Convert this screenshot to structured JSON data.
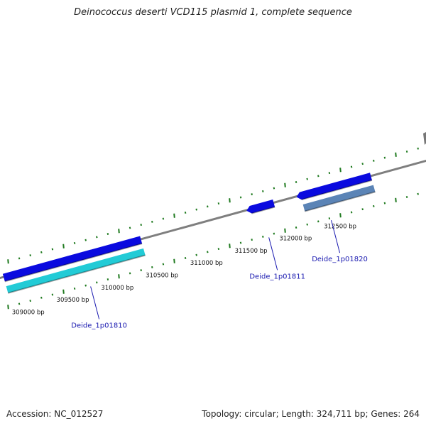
{
  "title": "Deinococcus deserti VCD115 plasmid 1, complete sequence",
  "footer": {
    "accession": "Accession: NC_012527",
    "topology": "Topology: circular; Length: 324,711 bp; Genes: 264"
  },
  "colors": {
    "backbone": "#7f7f7f",
    "tick": "#1f7a1f",
    "gene_blue": "#0a0adf",
    "gene_cyan": "#22cbd6",
    "gene_steel": "#5b84b6",
    "label_blue": "#1a1ab0"
  },
  "scale_labels": [
    {
      "text": "309000 bp",
      "pos": 309000
    },
    {
      "text": "309500 bp",
      "pos": 309500
    },
    {
      "text": "310000 bp",
      "pos": 310000
    },
    {
      "text": "310500 bp",
      "pos": 310500
    },
    {
      "text": "311000 bp",
      "pos": 311000
    },
    {
      "text": "311500 bp",
      "pos": 311500
    },
    {
      "text": "312000 bp",
      "pos": 312000
    },
    {
      "text": "312500 bp",
      "pos": 312500
    }
  ],
  "features": [
    {
      "id": "gene-1",
      "track": "forward-outer",
      "start": 309020,
      "end": 310560,
      "strand": "+",
      "color": "gene_blue"
    },
    {
      "id": "cds-1810",
      "track": "forward-inner",
      "start": 309020,
      "end": 310560,
      "strand": "+",
      "color": "gene_cyan"
    },
    {
      "id": "gene-1811",
      "track": "forward-outer",
      "start": 311790,
      "end": 312050,
      "strand": "-",
      "color": "gene_blue"
    },
    {
      "id": "gene-1820",
      "track": "forward-outer",
      "start": 312350,
      "end": 313140,
      "strand": "-",
      "color": "gene_blue"
    },
    {
      "id": "cds-1820",
      "track": "forward-inner",
      "start": 312350,
      "end": 313140,
      "strand": "+",
      "color": "gene_steel"
    }
  ],
  "gene_labels": [
    {
      "text": "Deide_1p01810",
      "pos": 309900
    },
    {
      "text": "Deide_1p01811",
      "pos": 311900
    },
    {
      "text": "Deide_1p01820",
      "pos": 312600
    }
  ]
}
